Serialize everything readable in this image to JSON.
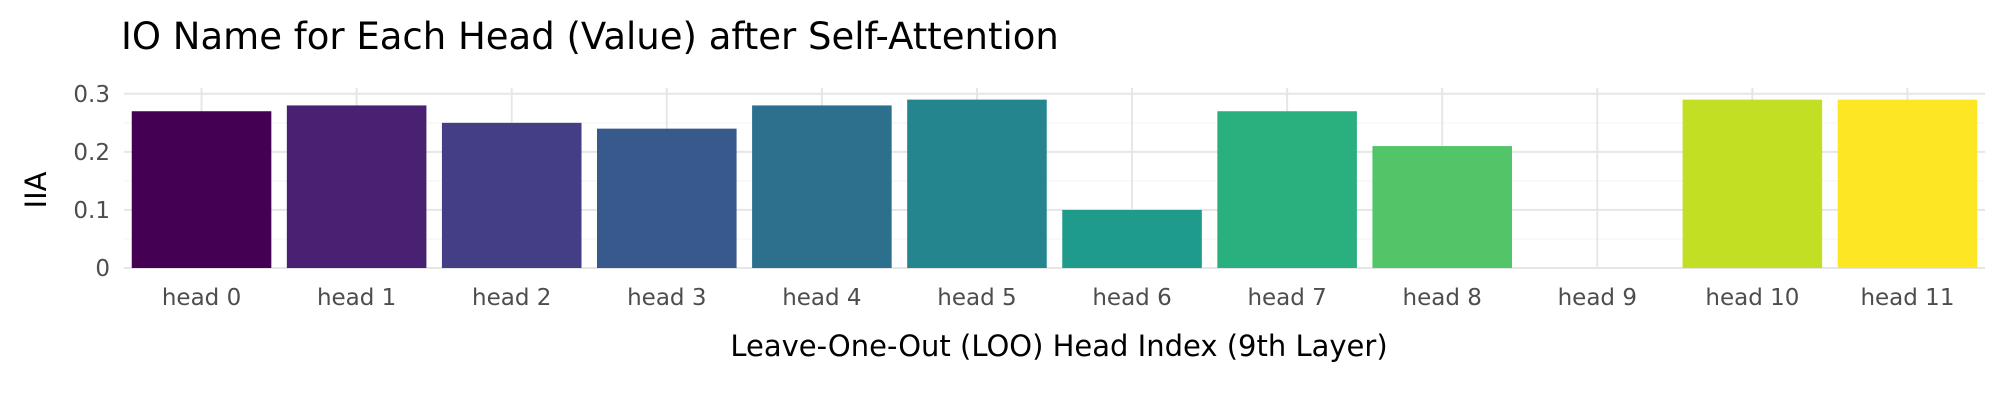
{
  "chart_data": {
    "type": "bar",
    "title": "IO Name for Each Head (Value) after Self-Attention",
    "xlabel": "Leave-One-Out (LOO) Head Index (9th Layer)",
    "ylabel": "IIA",
    "categories": [
      "head 0",
      "head 1",
      "head 2",
      "head 3",
      "head 4",
      "head 5",
      "head 6",
      "head 7",
      "head 8",
      "head 9",
      "head 10",
      "head 11"
    ],
    "values": [
      0.27,
      0.28,
      0.25,
      0.24,
      0.28,
      0.29,
      0.1,
      0.27,
      0.21,
      0.0,
      0.29,
      0.29
    ],
    "colors": [
      "#440154",
      "#482173",
      "#433e85",
      "#38598c",
      "#2d708e",
      "#25858e",
      "#1e9b8a",
      "#2ab07f",
      "#52c569",
      "#86d549",
      "#c2df23",
      "#fde725"
    ],
    "ylim": [
      0,
      0.3
    ],
    "yticks": [
      0,
      0.1,
      0.2,
      0.3
    ],
    "ytick_labels": [
      "0",
      "0.1",
      "0.2",
      "0.3"
    ],
    "grid": true,
    "legend": "none"
  }
}
